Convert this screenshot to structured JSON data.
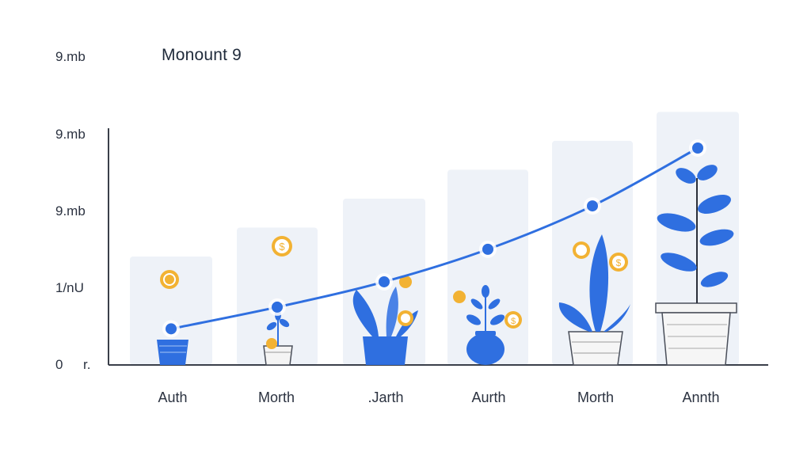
{
  "chart_data": {
    "type": "line",
    "title": "Monount 9",
    "categories": [
      "Auth",
      "Morth",
      ".Jarth",
      "Aurth",
      "Morth",
      "Annth"
    ],
    "y_tick_labels": [
      "9.mb",
      "9.mb",
      "9.mb",
      "1/nU",
      "0"
    ],
    "y_tick_suffix": "r.",
    "ylim": [
      0,
      9
    ],
    "series": [
      {
        "values": [
          1.0,
          1.6,
          2.3,
          3.2,
          4.4,
          6.0
        ]
      }
    ],
    "background_bars": [
      3.0,
      3.8,
      4.6,
      5.4,
      6.2,
      7.0
    ],
    "grid": false,
    "legend": "none"
  },
  "colors": {
    "line": "#2f6fe0",
    "point": "#2f6fe0",
    "bar": "#eef2f8",
    "axis": "#3a3f4a",
    "plant": "#3a6fd8",
    "coin": "#f2b233"
  },
  "icons": [
    "sprout-plant-icon",
    "coin-dollar-icon",
    "flower-pot-icon"
  ]
}
